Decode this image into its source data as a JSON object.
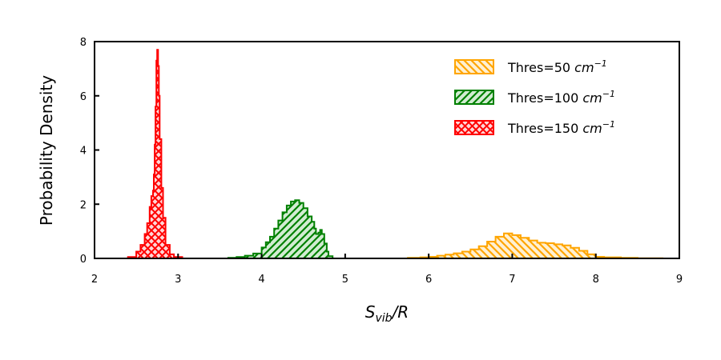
{
  "chart_data": {
    "type": "histogram",
    "title": "",
    "xlabel": {
      "main": "S",
      "sub": "vib",
      "rest": "/R"
    },
    "ylabel": "Probability Density",
    "xlim": [
      2,
      9
    ],
    "ylim": [
      0,
      8
    ],
    "xticks": [
      2,
      3,
      4,
      5,
      6,
      7,
      8,
      9
    ],
    "yticks": [
      0,
      2,
      4,
      6,
      8
    ],
    "legend_position": "top-right",
    "grid": false,
    "series": [
      {
        "name": "Thres=50 cm",
        "unit_exponent": "−1",
        "color": "#FFA500",
        "fill": "#FFF0D2",
        "hatch": "back-diagonal",
        "points": [
          [
            5.6,
            0.0
          ],
          [
            5.75,
            0.02
          ],
          [
            5.9,
            0.04
          ],
          [
            6.0,
            0.06
          ],
          [
            6.1,
            0.1
          ],
          [
            6.2,
            0.14
          ],
          [
            6.3,
            0.19
          ],
          [
            6.4,
            0.25
          ],
          [
            6.5,
            0.33
          ],
          [
            6.6,
            0.45
          ],
          [
            6.7,
            0.62
          ],
          [
            6.8,
            0.8
          ],
          [
            6.9,
            0.92
          ],
          [
            7.0,
            0.86
          ],
          [
            7.1,
            0.76
          ],
          [
            7.2,
            0.66
          ],
          [
            7.3,
            0.58
          ],
          [
            7.4,
            0.56
          ],
          [
            7.5,
            0.52
          ],
          [
            7.6,
            0.48
          ],
          [
            7.7,
            0.39
          ],
          [
            7.8,
            0.28
          ],
          [
            7.9,
            0.15
          ],
          [
            8.0,
            0.06
          ],
          [
            8.1,
            0.04
          ],
          [
            8.3,
            0.02
          ],
          [
            8.5,
            0.01
          ],
          [
            8.8,
            0.0
          ]
        ]
      },
      {
        "name": "Thres=100 cm",
        "unit_exponent": "−1",
        "color": "#008000",
        "fill": "#D2ECD2",
        "hatch": "diagonal",
        "points": [
          [
            3.5,
            0.0
          ],
          [
            3.6,
            0.02
          ],
          [
            3.7,
            0.05
          ],
          [
            3.8,
            0.1
          ],
          [
            3.9,
            0.18
          ],
          [
            4.0,
            0.4
          ],
          [
            4.05,
            0.6
          ],
          [
            4.1,
            0.8
          ],
          [
            4.15,
            1.1
          ],
          [
            4.2,
            1.4
          ],
          [
            4.25,
            1.7
          ],
          [
            4.3,
            1.95
          ],
          [
            4.35,
            2.1
          ],
          [
            4.4,
            2.15
          ],
          [
            4.45,
            2.05
          ],
          [
            4.5,
            1.85
          ],
          [
            4.55,
            1.55
          ],
          [
            4.6,
            1.35
          ],
          [
            4.63,
            1.1
          ],
          [
            4.65,
            0.9
          ],
          [
            4.68,
            0.95
          ],
          [
            4.7,
            1.05
          ],
          [
            4.72,
            0.9
          ],
          [
            4.75,
            0.55
          ],
          [
            4.78,
            0.25
          ],
          [
            4.8,
            0.08
          ],
          [
            4.85,
            0.0
          ]
        ]
      },
      {
        "name": "Thres=150 cm",
        "unit_exponent": "−1",
        "color": "#FF0000",
        "fill": "#FFD6D6",
        "hatch": "cross",
        "points": [
          [
            2.3,
            0.0
          ],
          [
            2.4,
            0.05
          ],
          [
            2.5,
            0.25
          ],
          [
            2.55,
            0.5
          ],
          [
            2.6,
            0.9
          ],
          [
            2.63,
            1.3
          ],
          [
            2.66,
            1.9
          ],
          [
            2.68,
            2.3
          ],
          [
            2.7,
            2.5
          ],
          [
            2.71,
            3.1
          ],
          [
            2.72,
            4.2
          ],
          [
            2.73,
            5.6
          ],
          [
            2.74,
            7.3
          ],
          [
            2.75,
            7.7
          ],
          [
            2.76,
            7.1
          ],
          [
            2.77,
            6.0
          ],
          [
            2.78,
            4.4
          ],
          [
            2.8,
            2.6
          ],
          [
            2.82,
            1.5
          ],
          [
            2.85,
            0.5
          ],
          [
            2.9,
            0.15
          ],
          [
            2.95,
            0.05
          ],
          [
            3.05,
            0.0
          ]
        ]
      }
    ]
  }
}
